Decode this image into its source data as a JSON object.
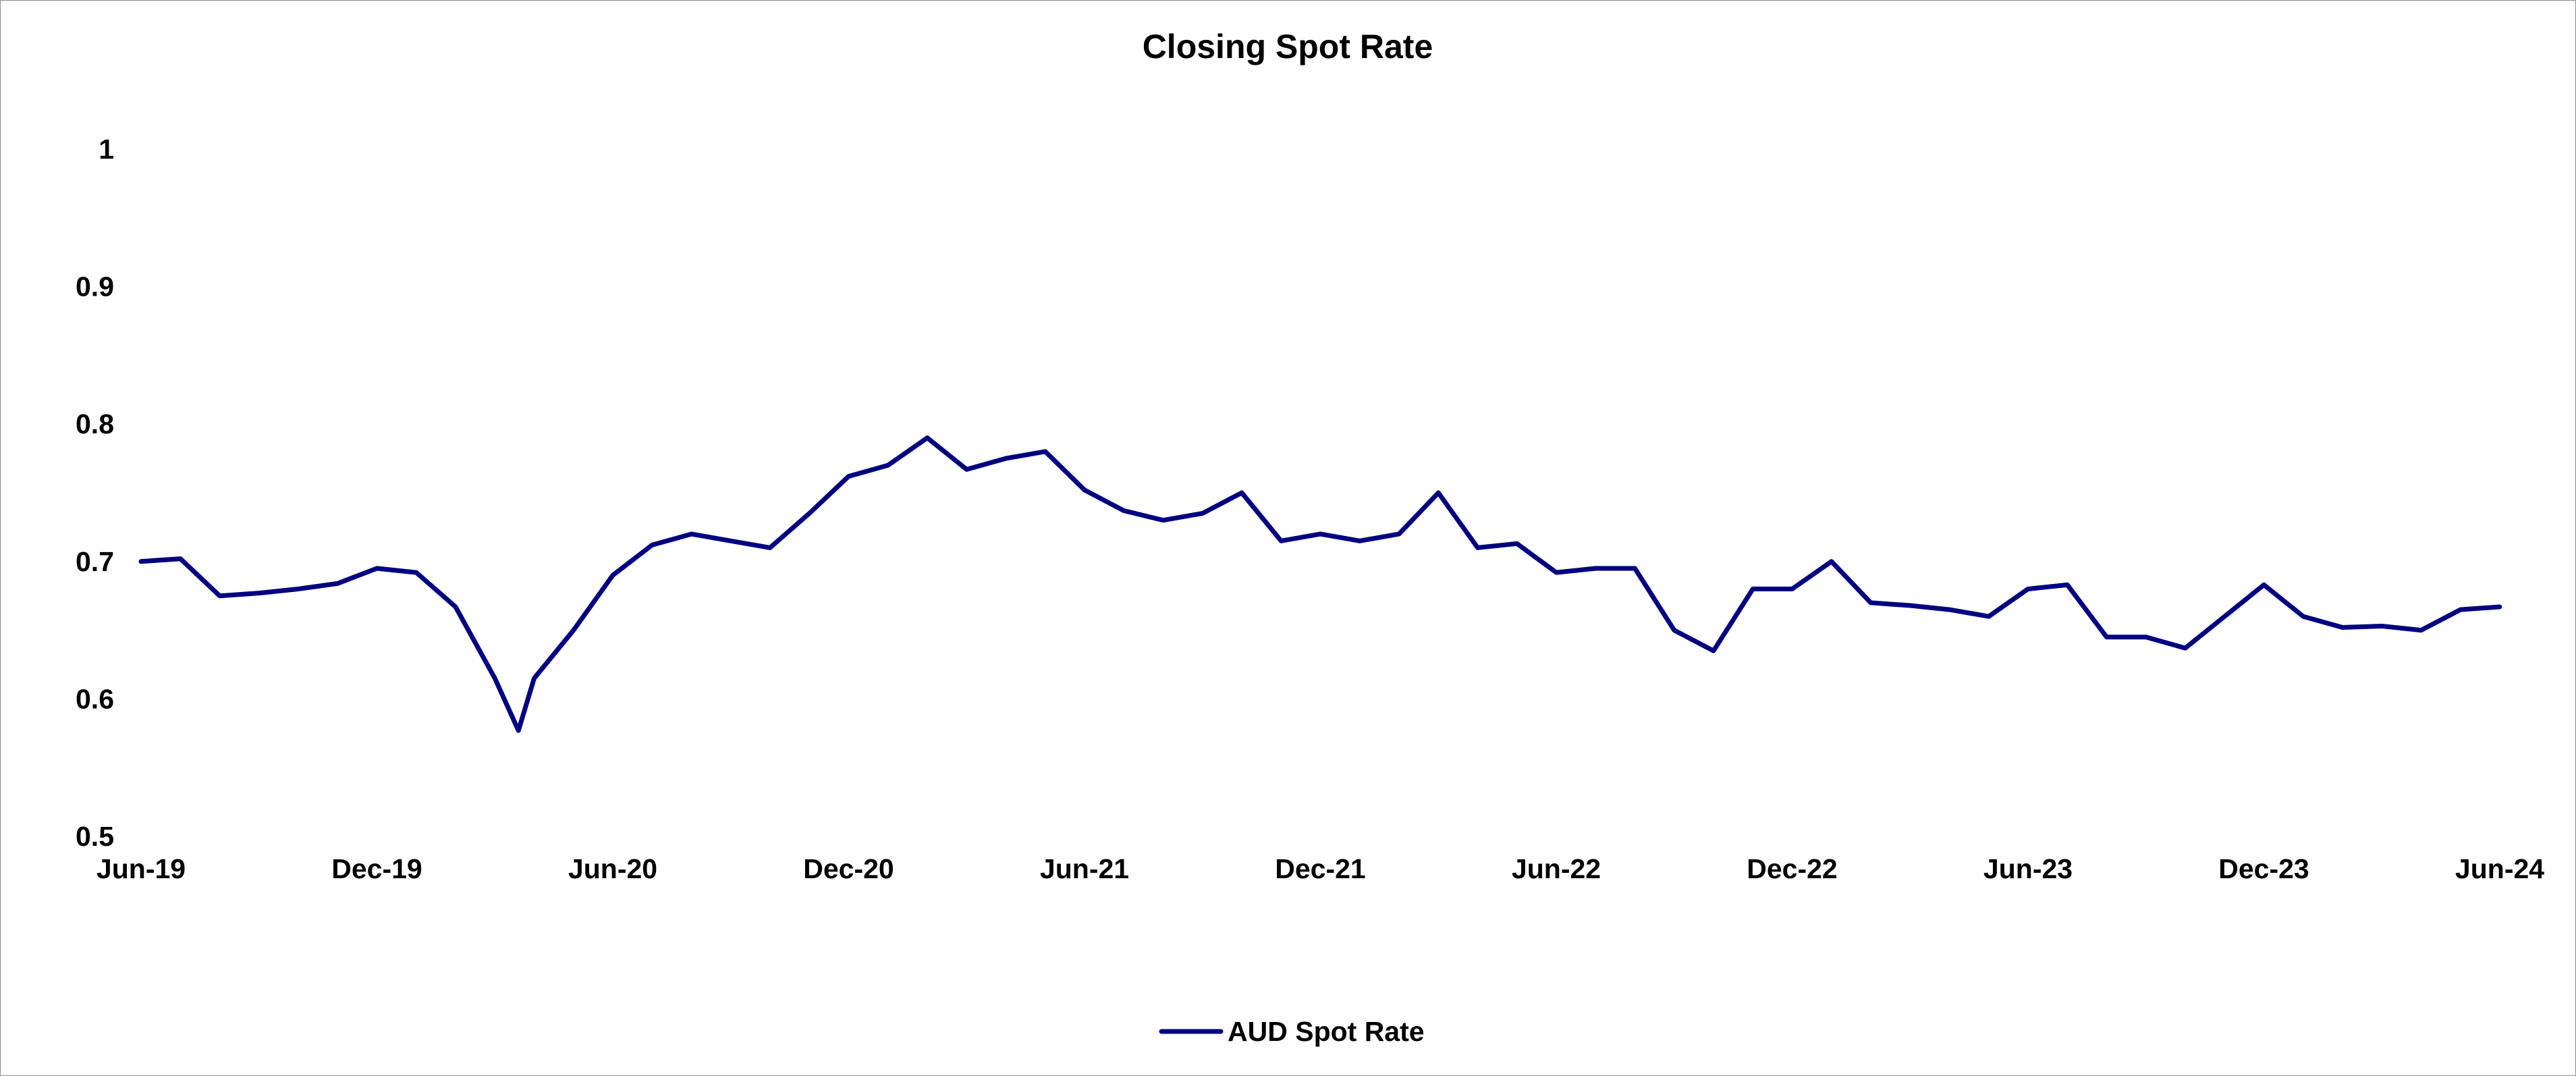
{
  "chart_data": {
    "type": "line",
    "title": "Closing Spot Rate",
    "xlabel": "",
    "ylabel": "",
    "ylim": [
      0.5,
      1.0
    ],
    "yticks": [
      "0.5",
      "0.6",
      "0.7",
      "0.8",
      "0.9",
      "1"
    ],
    "xlim": [
      "2019-06",
      "2024-06"
    ],
    "xticks": [
      "Jun-19",
      "Dec-19",
      "Jun-20",
      "Dec-20",
      "Jun-21",
      "Dec-21",
      "Jun-22",
      "Dec-22",
      "Jun-23",
      "Dec-23",
      "Jun-24"
    ],
    "grid": false,
    "legend": "bottom-center",
    "line_color": "#000080",
    "series": [
      {
        "name": "AUD Spot Rate",
        "x": [
          "2019-06",
          "2019-07",
          "2019-08",
          "2019-09",
          "2019-10",
          "2019-11",
          "2019-12",
          "2020-01",
          "2020-02",
          "2020-03",
          "2020-03-19",
          "2020-04",
          "2020-05",
          "2020-06",
          "2020-07",
          "2020-08",
          "2020-09",
          "2020-10",
          "2020-11",
          "2020-12",
          "2021-01",
          "2021-02",
          "2021-03",
          "2021-04",
          "2021-05",
          "2021-06",
          "2021-07",
          "2021-08",
          "2021-09",
          "2021-10",
          "2021-11",
          "2021-12",
          "2022-01",
          "2022-02",
          "2022-03",
          "2022-04",
          "2022-05",
          "2022-06",
          "2022-07",
          "2022-08",
          "2022-09",
          "2022-10",
          "2022-11",
          "2022-12",
          "2023-01",
          "2023-02",
          "2023-03",
          "2023-04",
          "2023-05",
          "2023-06",
          "2023-07",
          "2023-08",
          "2023-09",
          "2023-10",
          "2023-11",
          "2023-12",
          "2024-01",
          "2024-02",
          "2024-03",
          "2024-04",
          "2024-05",
          "2024-06"
        ],
        "values": [
          0.7,
          0.702,
          0.675,
          0.677,
          0.68,
          0.684,
          0.695,
          0.692,
          0.667,
          0.615,
          0.577,
          0.615,
          0.65,
          0.69,
          0.712,
          0.72,
          0.715,
          0.71,
          0.735,
          0.762,
          0.77,
          0.79,
          0.767,
          0.775,
          0.78,
          0.752,
          0.737,
          0.73,
          0.735,
          0.75,
          0.715,
          0.72,
          0.715,
          0.72,
          0.75,
          0.71,
          0.713,
          0.692,
          0.695,
          0.695,
          0.65,
          0.635,
          0.68,
          0.68,
          0.7,
          0.67,
          0.668,
          0.665,
          0.66,
          0.68,
          0.683,
          0.645,
          0.645,
          0.637,
          0.66,
          0.683,
          0.66,
          0.652,
          0.653,
          0.65,
          0.665,
          0.667
        ]
      }
    ]
  }
}
